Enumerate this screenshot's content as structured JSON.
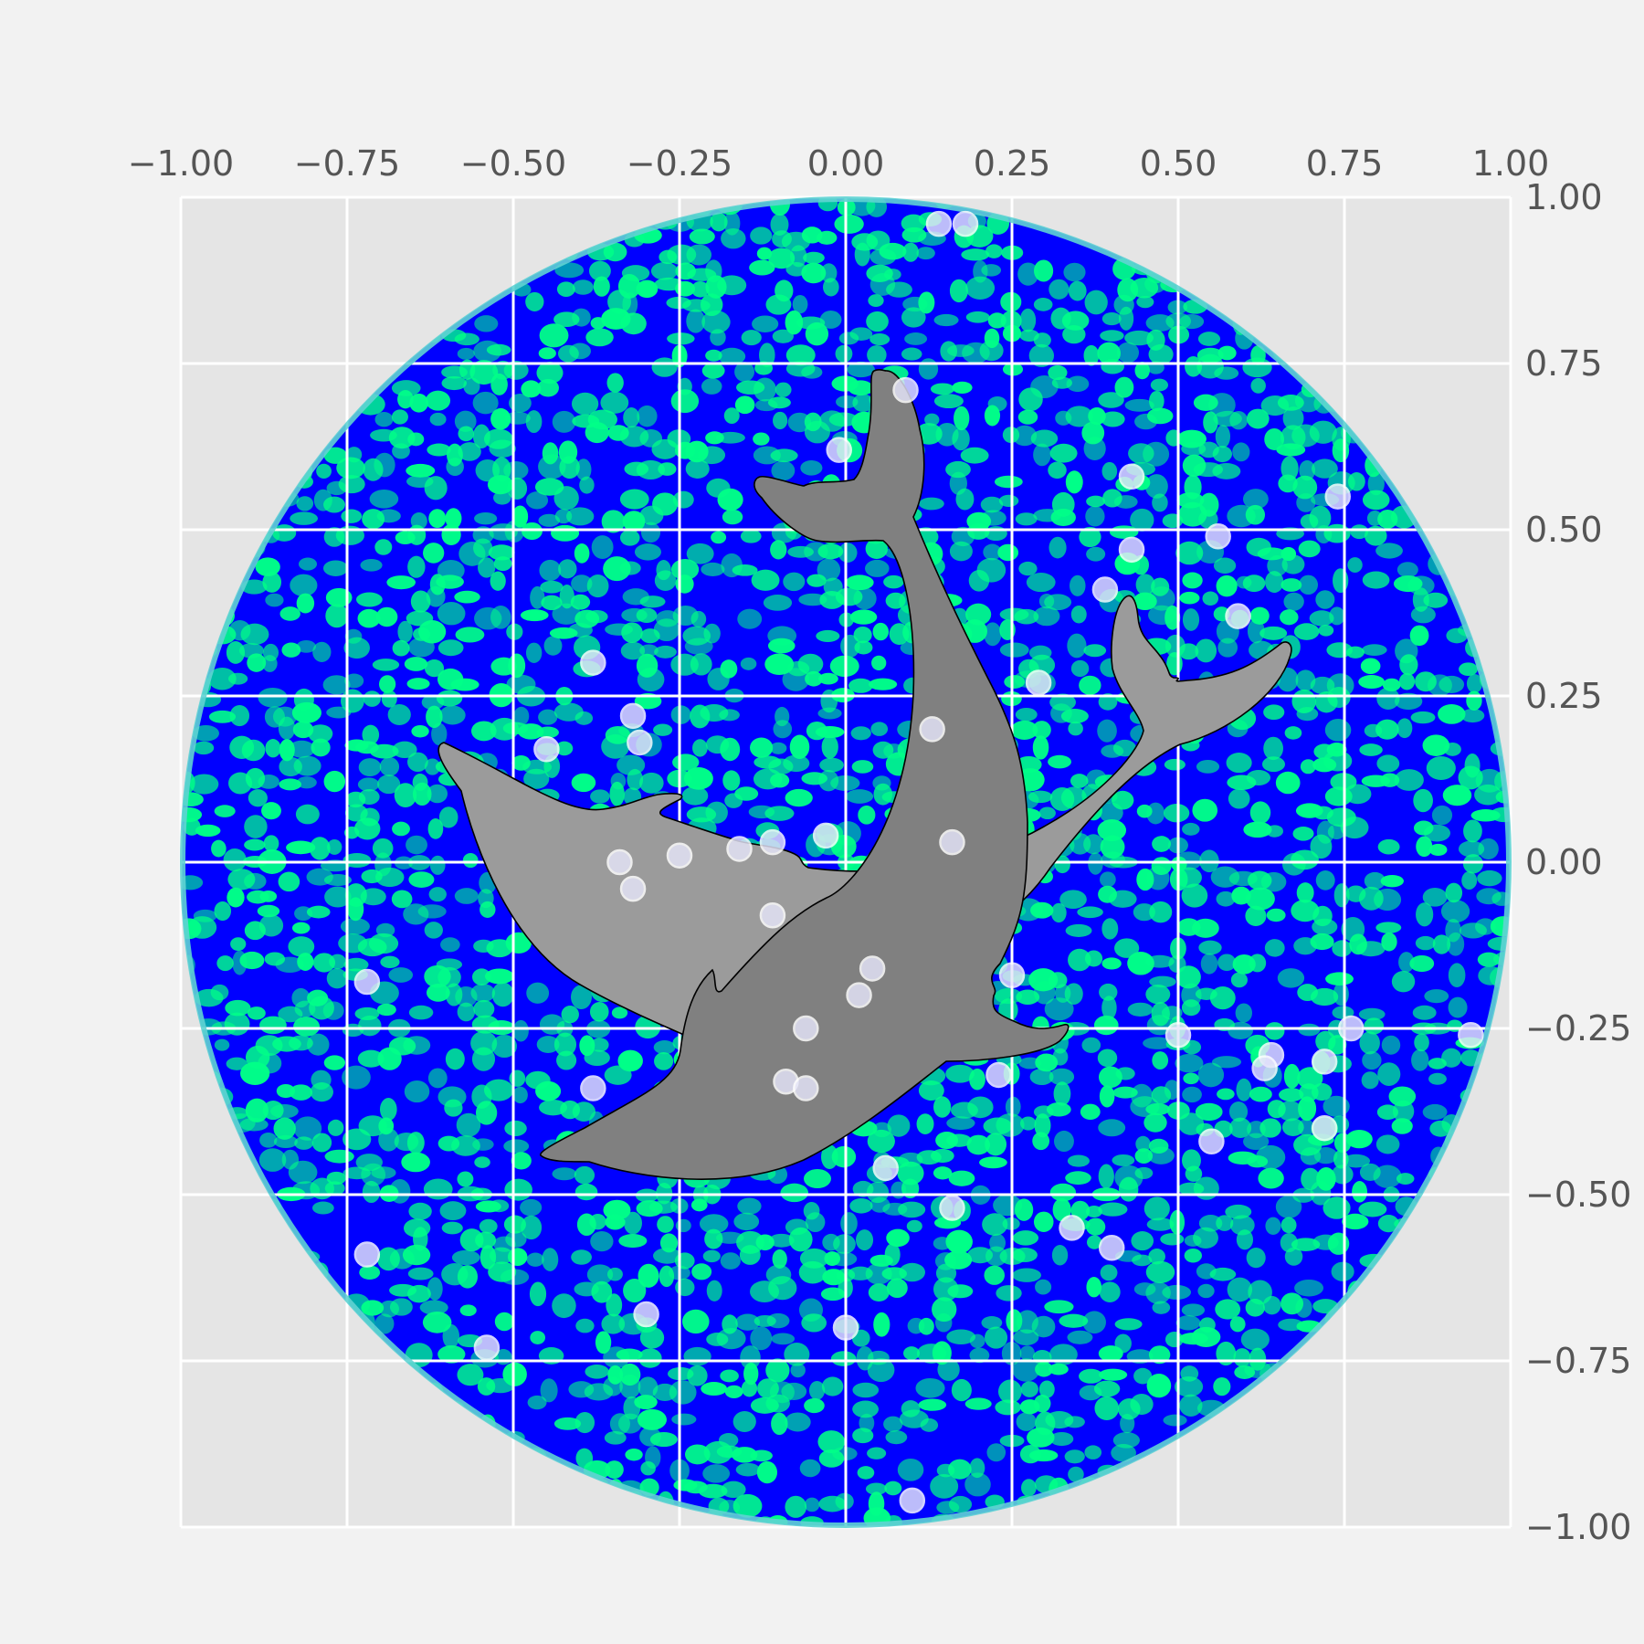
{
  "chart_data": {
    "type": "scatter",
    "title": "",
    "xlabel": "",
    "ylabel": "",
    "xlim": [
      -1.0,
      1.0
    ],
    "ylim": [
      -1.0,
      1.0
    ],
    "grid": true,
    "x_axis_position": "top",
    "y_axis_position": "right",
    "x_ticks": [
      -1.0,
      -0.75,
      -0.5,
      -0.25,
      0.0,
      0.25,
      0.5,
      0.75,
      1.0
    ],
    "x_tick_labels": [
      "−1.00",
      "−0.75",
      "−0.50",
      "−0.25",
      "0.00",
      "0.25",
      "0.50",
      "0.75",
      "1.00"
    ],
    "y_ticks": [
      1.0,
      0.75,
      0.5,
      0.25,
      0.0,
      -0.25,
      -0.5,
      -0.75,
      -1.0
    ],
    "y_tick_labels": [
      "1.00",
      "0.75",
      "0.50",
      "0.25",
      "0.00",
      "−0.25",
      "−0.50",
      "−0.75",
      "−1.00"
    ],
    "background": {
      "shape": "circle",
      "center": [
        0,
        0
      ],
      "radius": 1.0,
      "fill": "random noise texture",
      "colors": [
        "#0000ff",
        "#00ff88"
      ],
      "edge_color": "#5fd3d3"
    },
    "illustration": "two dolphins",
    "colors": {
      "figure_bg": "#f2f2f2",
      "axes_bg": "#e5e5e5",
      "grid": "#ffffff",
      "tick_text": "#555555",
      "dolphin_front": "#808080",
      "dolphin_back": "#9b9b9b",
      "dolphin_outline": "#000000",
      "point_fill": "#e6e6fa",
      "point_edge": "#ffffff"
    },
    "points": [
      [
        0.14,
        0.96
      ],
      [
        0.18,
        0.96
      ],
      [
        0.09,
        0.71
      ],
      [
        -0.01,
        0.62
      ],
      [
        0.43,
        0.58
      ],
      [
        0.74,
        0.55
      ],
      [
        0.43,
        0.47
      ],
      [
        0.56,
        0.49
      ],
      [
        0.39,
        0.41
      ],
      [
        0.59,
        0.37
      ],
      [
        -0.38,
        0.3
      ],
      [
        0.29,
        0.27
      ],
      [
        -0.32,
        0.22
      ],
      [
        -0.45,
        0.17
      ],
      [
        -0.31,
        0.18
      ],
      [
        0.13,
        0.2
      ],
      [
        -0.11,
        0.03
      ],
      [
        -0.03,
        0.04
      ],
      [
        0.16,
        0.03
      ],
      [
        -0.16,
        0.02
      ],
      [
        -0.25,
        0.01
      ],
      [
        -0.34,
        0.0
      ],
      [
        -0.32,
        -0.04
      ],
      [
        -0.11,
        -0.08
      ],
      [
        -0.72,
        -0.18
      ],
      [
        0.04,
        -0.16
      ],
      [
        0.02,
        -0.2
      ],
      [
        0.25,
        -0.17
      ],
      [
        -0.06,
        -0.25
      ],
      [
        0.5,
        -0.26
      ],
      [
        0.64,
        -0.29
      ],
      [
        0.76,
        -0.25
      ],
      [
        0.94,
        -0.26
      ],
      [
        0.63,
        -0.31
      ],
      [
        0.72,
        -0.3
      ],
      [
        0.23,
        -0.32
      ],
      [
        -0.09,
        -0.33
      ],
      [
        -0.06,
        -0.34
      ],
      [
        -0.38,
        -0.34
      ],
      [
        0.72,
        -0.4
      ],
      [
        0.55,
        -0.42
      ],
      [
        0.06,
        -0.46
      ],
      [
        0.16,
        -0.52
      ],
      [
        0.34,
        -0.55
      ],
      [
        0.4,
        -0.58
      ],
      [
        -0.72,
        -0.59
      ],
      [
        -0.3,
        -0.68
      ],
      [
        0.0,
        -0.7
      ],
      [
        -0.54,
        -0.73
      ],
      [
        0.1,
        -0.96
      ]
    ]
  }
}
